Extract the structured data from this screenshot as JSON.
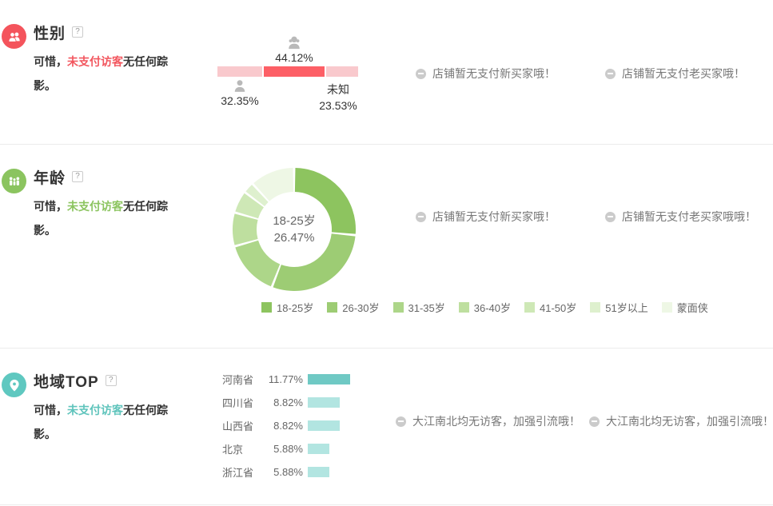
{
  "colors": {
    "gender_accent": "#f4545c",
    "gender_bar_strong": "#fd5f66",
    "gender_bar_light": "#f9c9cd",
    "age_accent": "#8bc45f",
    "age_palette": [
      "#8dc45f",
      "#9dcc74",
      "#add689",
      "#bedf9f",
      "#cee8b6",
      "#def0ce",
      "#eef7e5"
    ],
    "region_accent": "#5fc8c0",
    "region_bar_strong": "#6fc9c4",
    "region_bar_light": "#b2e5e1",
    "person_icon_gray": "#b9b9b9",
    "message_icon_gray": "#cbcbcb"
  },
  "sections": {
    "gender": {
      "title": "性别",
      "help": "?",
      "note": {
        "prefix": "可惜，",
        "link": "未支付访客",
        "suffix": "无任何踪影。"
      },
      "labels": {
        "female_pct": "44.12%",
        "male_pct": "32.35%",
        "unknown_name": "未知",
        "unknown_pct": "23.53%"
      },
      "messages": [
        "店铺暂无支付新买家哦！",
        "店铺暂无支付老买家哦！"
      ]
    },
    "age": {
      "title": "年龄",
      "help": "?",
      "note": {
        "prefix": "可惜，",
        "link": "未支付访客",
        "suffix": "无任何踪影。"
      },
      "center": {
        "label": "18-25岁",
        "pct": "26.47%"
      },
      "legend": [
        "18-25岁",
        "26-30岁",
        "31-35岁",
        "36-40岁",
        "41-50岁",
        "51岁以上",
        "蒙面侠"
      ],
      "messages": [
        "店铺暂无支付新买家哦！",
        "店铺暂无支付老买家哦哦！"
      ]
    },
    "region": {
      "title": "地域TOP",
      "help": "?",
      "note": {
        "prefix": "可惜，",
        "link": "未支付访客",
        "suffix": "无任何踪影。"
      },
      "rows": [
        {
          "label": "河南省",
          "value": "11.77%"
        },
        {
          "label": "四川省",
          "value": "8.82%"
        },
        {
          "label": "山西省",
          "value": "8.82%"
        },
        {
          "label": "北京",
          "value": "5.88%"
        },
        {
          "label": "浙江省",
          "value": "5.88%"
        }
      ],
      "messages": [
        "大江南北均无访客，加强引流哦！",
        "大江南北均无访客，加强引流哦！"
      ]
    }
  },
  "chart_data": [
    {
      "type": "bar",
      "subtype": "stacked-percentage-horizontal",
      "title": "性别",
      "categories": [
        "男",
        "女",
        "未知"
      ],
      "values": [
        32.35,
        44.12,
        23.53
      ],
      "highlight_index": 1,
      "labels_shown": [
        "32.35%",
        "44.12%",
        "未知 23.53%"
      ]
    },
    {
      "type": "pie",
      "subtype": "donut",
      "title": "年龄",
      "categories": [
        "18-25岁",
        "26-30岁",
        "31-35岁",
        "36-40岁",
        "41-50岁",
        "51岁以上",
        "蒙面侠"
      ],
      "values": [
        26.47,
        29.41,
        14.71,
        8.82,
        5.88,
        2.94,
        11.76
      ],
      "value_note": "only 18-25岁 = 26.47% labeled in chart center; other slice values estimated from arc angles",
      "center_label": "18-25岁 26.47%",
      "legend_position": "bottom"
    },
    {
      "type": "bar",
      "subtype": "horizontal",
      "title": "地域TOP",
      "categories": [
        "河南省",
        "四川省",
        "山西省",
        "北京",
        "浙江省"
      ],
      "values": [
        11.77,
        8.82,
        8.82,
        5.88,
        5.88
      ],
      "highlight_index": 0
    }
  ]
}
